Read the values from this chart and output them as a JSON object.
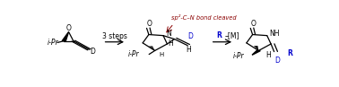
{
  "fig_width": 3.78,
  "fig_height": 0.97,
  "dpi": 100,
  "background": "#ffffff",
  "black": "#000000",
  "dark_red": "#8B0000",
  "blue": "#0000CD",
  "arrow1_label": "3 steps",
  "arrow2_label_R": "R",
  "arrow2_label_rest": "–[M]",
  "annotation_text": "sp²-C–N bond cleaved"
}
